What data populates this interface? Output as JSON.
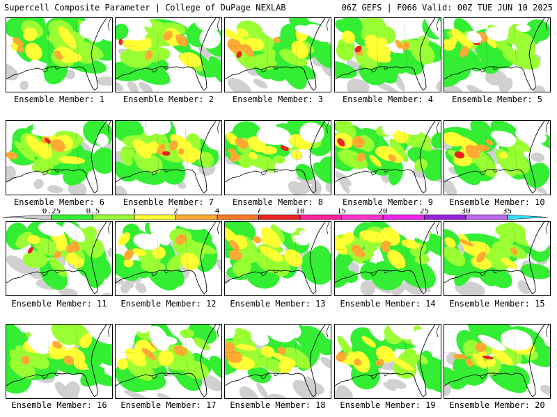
{
  "header": {
    "left": "Supercell Composite Parameter | College of DuPage NEXLAB",
    "right": "06Z GEFS | F066 Valid: 00Z TUE JUN 10 2025"
  },
  "colorbar": {
    "levels": [
      "0.25",
      "0.5",
      "1",
      "2",
      "4",
      "7",
      "10",
      "15",
      "20",
      "25",
      "30",
      "35"
    ],
    "colors": [
      "#cccccc",
      "#33ee33",
      "#99ff33",
      "#ffff33",
      "#ffaa33",
      "#ff7722",
      "#ee2222",
      "#ff2299",
      "#ff33cc",
      "#ee22ee",
      "#9922dd",
      "#bb66ee",
      "#33ddff"
    ]
  },
  "panel_colors": {
    "gray": "#d0d0d0",
    "green": "#33ee33",
    "lime": "#99ff33",
    "yellow": "#ffff33",
    "orange": "#ffaa33",
    "red": "#ee2222",
    "magenta": "#dd1188"
  },
  "members": [
    {
      "label": "Ensemble Member: 1"
    },
    {
      "label": "Ensemble Member: 2"
    },
    {
      "label": "Ensemble Member: 3"
    },
    {
      "label": "Ensemble Member: 4"
    },
    {
      "label": "Ensemble Member: 5"
    },
    {
      "label": "Ensemble Member: 6"
    },
    {
      "label": "Ensemble Member: 7"
    },
    {
      "label": "Ensemble Member: 8"
    },
    {
      "label": "Ensemble Member: 9"
    },
    {
      "label": "Ensemble Member: 10"
    },
    {
      "label": "Ensemble Member: 11"
    },
    {
      "label": "Ensemble Member: 12"
    },
    {
      "label": "Ensemble Member: 13"
    },
    {
      "label": "Ensemble Member: 14"
    },
    {
      "label": "Ensemble Member: 15"
    },
    {
      "label": "Ensemble Member: 16"
    },
    {
      "label": "Ensemble Member: 17"
    },
    {
      "label": "Ensemble Member: 18"
    },
    {
      "label": "Ensemble Member: 19"
    },
    {
      "label": "Ensemble Member: 20"
    }
  ]
}
